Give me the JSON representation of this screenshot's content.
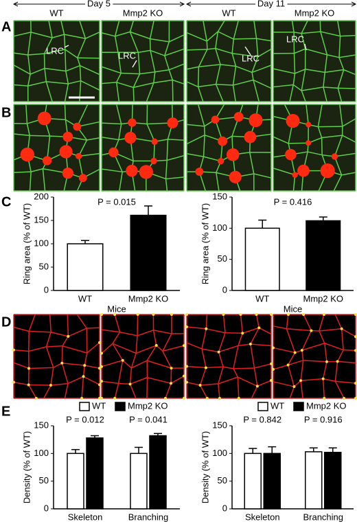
{
  "header": {
    "days": [
      "Day 5",
      "Day 11"
    ],
    "columns": [
      "WT",
      "Mmp2 KO",
      "WT",
      "Mmp2 KO"
    ],
    "panel_labels": [
      "A",
      "B",
      "C",
      "D",
      "E"
    ],
    "arrow_labels": [
      "LRC",
      "LRC",
      "LRC",
      "LRC"
    ]
  },
  "chart_data": [
    {
      "type": "bar",
      "title": "P = 0.015",
      "categories": [
        "WT",
        "Mmp2 KO"
      ],
      "values": [
        100,
        161
      ],
      "errors": [
        7,
        20
      ],
      "colors": [
        "#ffffff",
        "#000000"
      ],
      "ylim": [
        0,
        200
      ],
      "yticks": [
        0,
        50,
        100,
        150,
        200
      ],
      "ylabel": "Ring area (% of WT)",
      "xlabel": "Mice"
    },
    {
      "type": "bar",
      "title": "P = 0.416",
      "categories": [
        "WT",
        "Mmp2 KO"
      ],
      "values": [
        100,
        112
      ],
      "errors": [
        13,
        6
      ],
      "colors": [
        "#ffffff",
        "#000000"
      ],
      "ylim": [
        0,
        150
      ],
      "yticks": [
        0,
        50,
        100,
        150
      ],
      "ylabel": "Ring area (% of WT)",
      "xlabel": "Mice"
    },
    {
      "type": "grouped-bar",
      "categories": [
        "Skeleton",
        "Branching"
      ],
      "annotations": [
        "P = 0.012",
        "P = 0.041"
      ],
      "series": [
        {
          "name": "WT",
          "color": "#ffffff",
          "values": [
            100,
            100
          ],
          "errors": [
            7,
            11
          ]
        },
        {
          "name": "Mmp2 KO",
          "color": "#000000",
          "values": [
            128,
            132
          ],
          "errors": [
            4,
            4
          ]
        }
      ],
      "ylim": [
        0,
        150
      ],
      "yticks": [
        0,
        50,
        100,
        150
      ],
      "ylabel": "Density (% of WT)"
    },
    {
      "type": "grouped-bar",
      "categories": [
        "Skeleton",
        "Branching"
      ],
      "annotations": [
        "P = 0.842",
        "P = 0.916"
      ],
      "series": [
        {
          "name": "WT",
          "color": "#ffffff",
          "values": [
            100,
            103
          ],
          "errors": [
            9,
            7
          ]
        },
        {
          "name": "Mmp2 KO",
          "color": "#000000",
          "values": [
            100,
            102
          ],
          "errors": [
            12,
            8
          ]
        }
      ],
      "ylim": [
        0,
        150
      ],
      "yticks": [
        0,
        50,
        100,
        150
      ],
      "ylabel": "Density (% of WT)"
    }
  ]
}
